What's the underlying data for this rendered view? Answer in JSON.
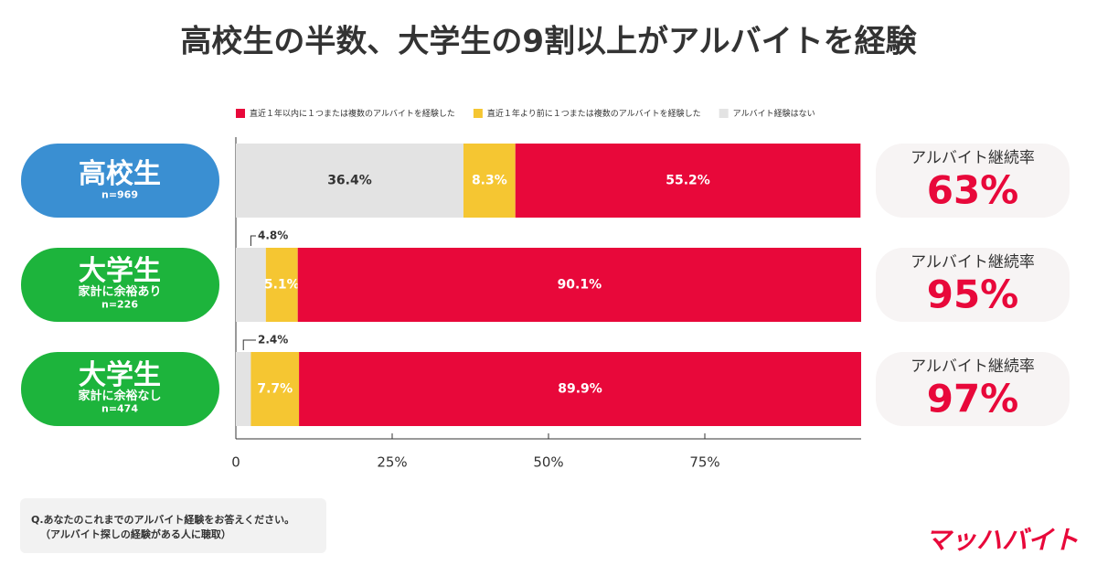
{
  "chart_data": {
    "type": "stacked-barh",
    "title": "高校生の半数、大学生の9割以上がアルバイトを経験",
    "categories": [
      "高校生",
      "大学生",
      "大学生"
    ],
    "category_details": [
      [
        "n=969"
      ],
      [
        "家計に余裕あり",
        "n=226"
      ],
      [
        "家計に余裕なし",
        "n=474"
      ]
    ],
    "category_colors": [
      "#3a8fd2",
      "#1db43c",
      "#1db43c"
    ],
    "series": [
      {
        "name": "直近１年以内に１つまたは複数のアルバイトを経験した",
        "color": "#e8083a",
        "values": [
          55.2,
          90.1,
          89.9
        ],
        "value_labels": [
          "55.2%",
          "90.1%",
          "89.9%"
        ]
      },
      {
        "name": "直近１年より前に１つまたは複数のアルバイトを経験した",
        "color": "#f5c632",
        "values": [
          8.3,
          5.1,
          7.7
        ],
        "value_labels": [
          "8.3%",
          "5.1%",
          "7.7%"
        ]
      },
      {
        "name": "アルバイト経験はない",
        "color": "#e3e3e3",
        "values": [
          36.4,
          4.8,
          2.4
        ],
        "value_labels": [
          "36.4%",
          "4.8%",
          "2.4%"
        ]
      }
    ],
    "xlim": [
      0,
      100
    ],
    "xticks": [
      0,
      {
        "value": 25,
        "label": "25%"
      },
      {
        "value": 50,
        "label": "50%"
      },
      {
        "value": 75,
        "label": "75%"
      }
    ],
    "retention": {
      "label": "アルバイト継続率",
      "values": [
        63,
        95,
        97
      ],
      "value_labels": [
        "63%",
        "95%",
        "97%"
      ]
    },
    "footnote": [
      "Q.あなたのこれまでのアルバイト経験をお答えください。",
      "（アルバイト探しの経験がある人に聴取）"
    ],
    "brand": "マッハバイト"
  }
}
